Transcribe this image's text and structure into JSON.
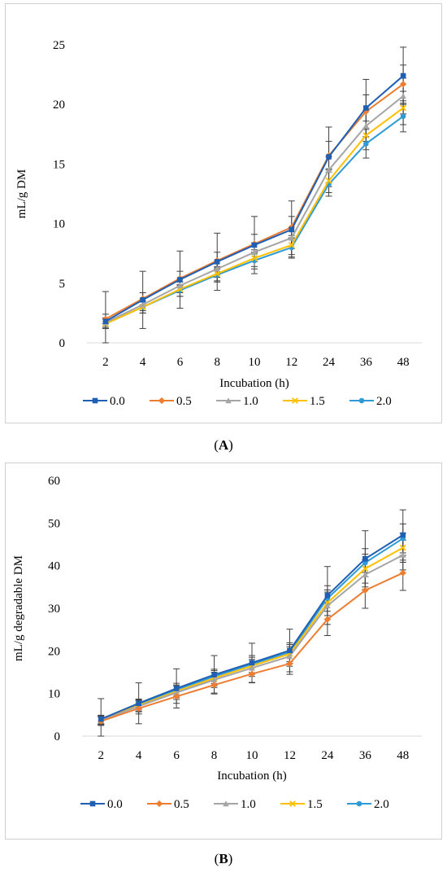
{
  "colors": {
    "0.0": "#1f5fb4",
    "0.5": "#ed7d31",
    "1.0": "#a5a5a5",
    "1.5": "#ffc000",
    "2.0": "#2e9bd6",
    "errorbar": "#404040",
    "axis": "#d9d9d9"
  },
  "captions": {
    "a_open": "(",
    "a_letter": "A",
    "a_close": ")",
    "b_open": "(",
    "b_letter": "B",
    "b_close": ")"
  },
  "chart_data": [
    {
      "type": "line",
      "panel": "A",
      "ylabel": "mL/g DM",
      "xlabel": "Incubation (h)",
      "categories": [
        "2",
        "4",
        "6",
        "8",
        "10",
        "12",
        "24",
        "36",
        "48"
      ],
      "ylim": [
        0,
        25
      ],
      "yticks": [
        0,
        5,
        10,
        15,
        20,
        25
      ],
      "legend_position": "bottom",
      "series": [
        {
          "name": "0.0",
          "marker": "square",
          "values": [
            1.8,
            3.6,
            5.3,
            6.8,
            8.2,
            9.5,
            15.6,
            19.7,
            22.4
          ],
          "err": [
            2.5,
            2.4,
            2.4,
            2.4,
            2.4,
            2.4,
            2.5,
            2.4,
            2.4
          ]
        },
        {
          "name": "0.5",
          "marker": "diamond",
          "values": [
            2.0,
            3.7,
            5.4,
            6.9,
            8.3,
            9.7,
            15.7,
            19.4,
            21.7
          ],
          "err": [
            0.4,
            0.5,
            0.6,
            0.7,
            0.8,
            0.9,
            1.2,
            1.4,
            1.6
          ]
        },
        {
          "name": "1.0",
          "marker": "triangle",
          "values": [
            1.7,
            3.2,
            4.8,
            6.2,
            7.6,
            8.8,
            14.5,
            18.2,
            20.7
          ],
          "err": [
            0.4,
            0.5,
            0.6,
            0.7,
            0.8,
            0.9,
            1.1,
            1.3,
            1.5
          ]
        },
        {
          "name": "1.5",
          "marker": "x",
          "values": [
            1.6,
            3.0,
            4.5,
            5.8,
            7.1,
            8.2,
            13.6,
            17.4,
            19.7
          ],
          "err": [
            0.4,
            0.5,
            0.6,
            0.6,
            0.7,
            0.8,
            1.0,
            1.2,
            1.4
          ]
        },
        {
          "name": "2.0",
          "marker": "circle",
          "values": [
            1.6,
            3.0,
            4.4,
            5.7,
            6.9,
            8.0,
            13.3,
            16.7,
            19.0
          ],
          "err": [
            0.4,
            0.5,
            0.5,
            0.6,
            0.7,
            0.8,
            1.0,
            1.2,
            1.3
          ]
        }
      ]
    },
    {
      "type": "line",
      "panel": "B",
      "ylabel": "mL/g degradable DM",
      "xlabel": "Incubation (h)",
      "categories": [
        "2",
        "4",
        "6",
        "8",
        "10",
        "12",
        "24",
        "36",
        "48"
      ],
      "ylim": [
        0,
        60
      ],
      "yticks": [
        0,
        10,
        20,
        30,
        40,
        50,
        60
      ],
      "legend_position": "bottom",
      "series": [
        {
          "name": "0.0",
          "marker": "square",
          "values": [
            4.0,
            7.7,
            11.2,
            14.4,
            17.2,
            20.1,
            33.0,
            41.6,
            47.2
          ],
          "err": [
            4.8,
            4.8,
            4.6,
            4.5,
            4.6,
            5.0,
            6.8,
            6.6,
            5.9
          ]
        },
        {
          "name": "0.5",
          "marker": "diamond",
          "values": [
            3.5,
            6.5,
            9.3,
            12.0,
            14.6,
            17.0,
            27.4,
            34.2,
            38.3
          ],
          "err": [
            1.0,
            1.3,
            1.6,
            1.9,
            2.1,
            2.5,
            3.8,
            4.2,
            4.1
          ]
        },
        {
          "name": "1.0",
          "marker": "triangle",
          "values": [
            3.7,
            7.0,
            10.2,
            13.2,
            16.0,
            18.7,
            30.6,
            37.9,
            42.5
          ],
          "err": [
            1.0,
            1.3,
            1.6,
            1.8,
            2.0,
            2.3,
            3.2,
            3.5,
            3.5
          ]
        },
        {
          "name": "1.5",
          "marker": "x",
          "values": [
            3.8,
            7.2,
            10.5,
            13.6,
            16.5,
            19.3,
            31.3,
            39.3,
            44.2
          ],
          "err": [
            1.0,
            1.3,
            1.5,
            1.8,
            2.0,
            2.2,
            3.0,
            3.4,
            3.4
          ]
        },
        {
          "name": "2.0",
          "marker": "circle",
          "values": [
            3.9,
            7.5,
            10.9,
            14.0,
            16.9,
            19.7,
            32.3,
            40.7,
            46.4
          ],
          "err": [
            1.0,
            1.2,
            1.5,
            1.7,
            2.0,
            2.2,
            3.0,
            3.3,
            3.4
          ]
        }
      ]
    }
  ]
}
